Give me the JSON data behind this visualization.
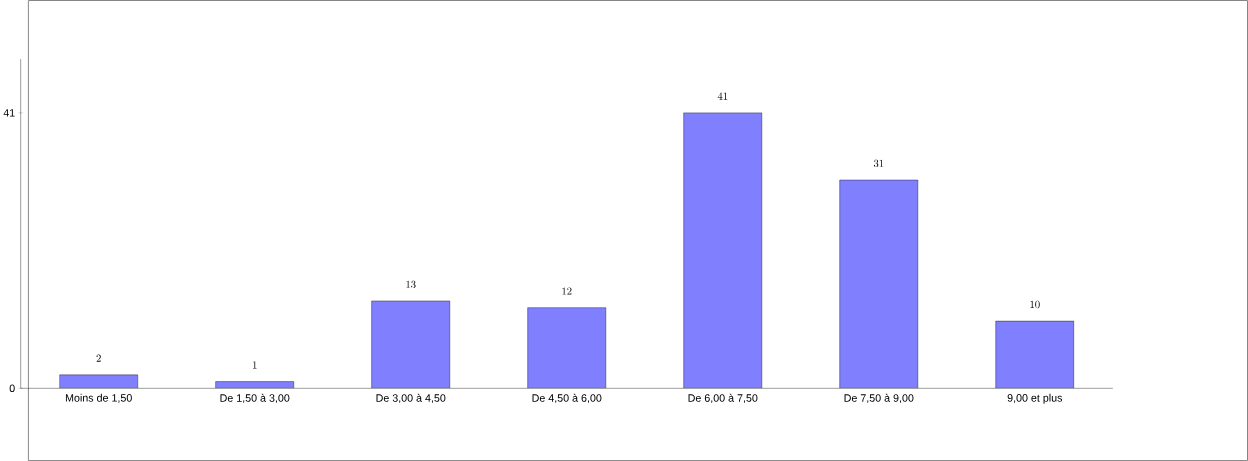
{
  "chart_data": {
    "type": "bar",
    "categories": [
      "Moins de 1,50",
      "De 1,50 à 3,00",
      "De 3,00 à 4,50",
      "De 4,50 à 6,00",
      "De 6,00 à 7,50",
      "De 7,50 à 9,00",
      "9,00 et plus"
    ],
    "values": [
      2,
      1,
      13,
      12,
      41,
      31,
      10
    ],
    "color": "#8080ff",
    "ylim": [
      0,
      49
    ],
    "yticks": [
      0,
      41
    ],
    "data_labels": true,
    "grid": false
  }
}
